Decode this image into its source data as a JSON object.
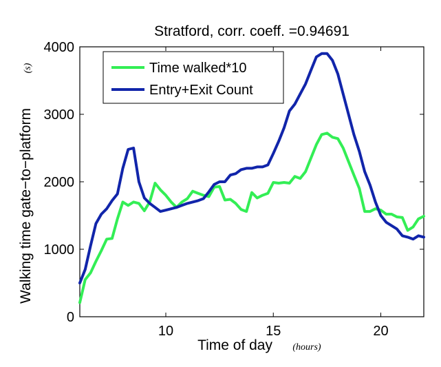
{
  "chart_data": {
    "type": "line",
    "title": "Stratford, corr. coeff. =0.94691",
    "xlabel": "Time of day",
    "xlabel_unit": "(hours)",
    "ylabel": "Walking time gate−to−platform",
    "ylabel_unit": "(s)",
    "xlim": [
      6,
      22
    ],
    "ylim": [
      0,
      4000
    ],
    "xticks": [
      10,
      15,
      20
    ],
    "yticks": [
      0,
      1000,
      2000,
      3000,
      4000
    ],
    "xtick_labels": [
      "10",
      "15",
      "20"
    ],
    "ytick_labels": [
      "0",
      "1000",
      "2000",
      "3000",
      "4000"
    ],
    "grid": false,
    "legend_position": "top-left",
    "series": [
      {
        "name": "Time walked*10",
        "color": "#33ee55",
        "x": [
          6.0,
          6.25,
          6.5,
          6.75,
          7.0,
          7.25,
          7.5,
          7.75,
          8.0,
          8.25,
          8.5,
          8.75,
          9.0,
          9.25,
          9.5,
          9.75,
          10.0,
          10.25,
          10.5,
          10.75,
          11.0,
          11.25,
          11.5,
          11.75,
          12.0,
          12.25,
          12.5,
          12.75,
          13.0,
          13.25,
          13.5,
          13.75,
          14.0,
          14.25,
          14.5,
          14.75,
          15.0,
          15.25,
          15.5,
          15.75,
          16.0,
          16.25,
          16.5,
          16.75,
          17.0,
          17.25,
          17.5,
          17.75,
          18.0,
          18.25,
          18.5,
          18.75,
          19.0,
          19.25,
          19.5,
          19.75,
          20.0,
          20.25,
          20.5,
          20.75,
          21.0,
          21.25,
          21.5,
          21.75,
          22.0
        ],
        "values": [
          210,
          550,
          650,
          820,
          980,
          1150,
          1160,
          1450,
          1700,
          1650,
          1700,
          1680,
          1570,
          1700,
          1980,
          1880,
          1800,
          1700,
          1620,
          1700,
          1750,
          1860,
          1830,
          1800,
          1780,
          1920,
          1930,
          1730,
          1740,
          1680,
          1590,
          1560,
          1840,
          1760,
          1800,
          1830,
          1990,
          1980,
          1990,
          1980,
          2080,
          2050,
          2150,
          2350,
          2550,
          2700,
          2720,
          2660,
          2640,
          2500,
          2300,
          2100,
          1900,
          1560,
          1560,
          1600,
          1580,
          1520,
          1520,
          1480,
          1470,
          1280,
          1330,
          1450,
          1490
        ]
      },
      {
        "name": "Entry+Exit Count",
        "color": "#1125aa",
        "x": [
          6.0,
          6.25,
          6.5,
          6.75,
          7.0,
          7.25,
          7.5,
          7.75,
          8.0,
          8.25,
          8.5,
          8.75,
          9.0,
          9.25,
          9.5,
          9.75,
          10.0,
          10.25,
          10.5,
          10.75,
          11.0,
          11.25,
          11.5,
          11.75,
          12.0,
          12.25,
          12.5,
          12.75,
          13.0,
          13.25,
          13.5,
          13.75,
          14.0,
          14.25,
          14.5,
          14.75,
          15.0,
          15.25,
          15.5,
          15.75,
          16.0,
          16.25,
          16.5,
          16.75,
          17.0,
          17.25,
          17.5,
          17.75,
          18.0,
          18.25,
          18.5,
          18.75,
          19.0,
          19.25,
          19.5,
          19.75,
          20.0,
          20.25,
          20.5,
          20.75,
          21.0,
          21.25,
          21.5,
          21.75,
          22.0
        ],
        "values": [
          500,
          700,
          1050,
          1380,
          1520,
          1600,
          1720,
          1820,
          2200,
          2480,
          2500,
          2000,
          1760,
          1680,
          1620,
          1560,
          1580,
          1600,
          1620,
          1650,
          1680,
          1700,
          1720,
          1750,
          1850,
          1960,
          2000,
          2000,
          2100,
          2120,
          2180,
          2200,
          2200,
          2220,
          2220,
          2250,
          2420,
          2600,
          2800,
          3050,
          3150,
          3300,
          3450,
          3650,
          3850,
          3900,
          3900,
          3800,
          3600,
          3300,
          3000,
          2700,
          2450,
          2150,
          1950,
          1700,
          1500,
          1400,
          1350,
          1300,
          1200,
          1180,
          1150,
          1200,
          1180
        ]
      }
    ]
  }
}
